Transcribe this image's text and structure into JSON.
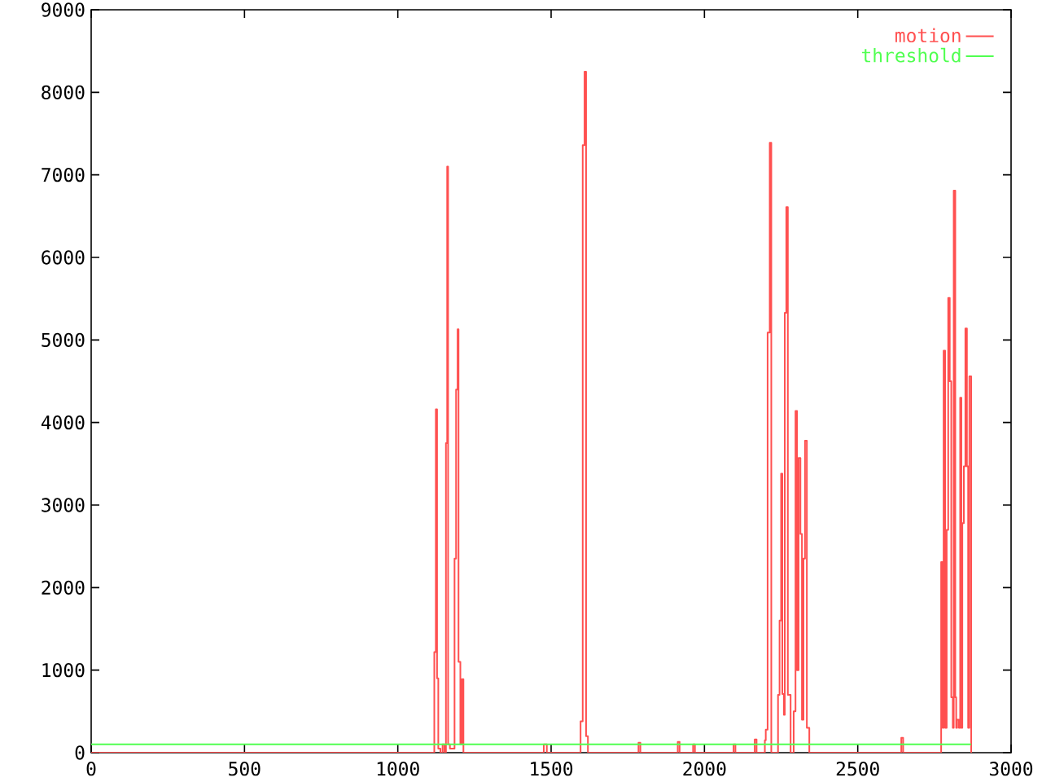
{
  "chart_data": {
    "type": "step",
    "series": [
      {
        "name": "motion",
        "color": "#ff5050",
        "x": [
          0,
          1119,
          1124,
          1128,
          1132,
          1139,
          1146,
          1152,
          1157,
          1161,
          1164,
          1170,
          1185,
          1190,
          1195,
          1198,
          1204,
          1209,
          1214,
          1476,
          1486,
          1596,
          1603,
          1609,
          1614,
          1620,
          1785,
          1791,
          1913,
          1919,
          1963,
          1969,
          2095,
          2101,
          2164,
          2170,
          2197,
          2200,
          2206,
          2213,
          2218,
          2240,
          2245,
          2250,
          2254,
          2259,
          2262,
          2267,
          2272,
          2281,
          2291,
          2297,
          2302,
          2307,
          2313,
          2318,
          2323,
          2328,
          2334,
          2342,
          2642,
          2648,
          2772,
          2777,
          2780,
          2785,
          2790,
          2795,
          2800,
          2805,
          2810,
          2813,
          2818,
          2821,
          2824,
          2830,
          2834,
          2838,
          2841,
          2846,
          2851,
          2856,
          2860,
          2864,
          2870
        ],
        "values": [
          0,
          1220,
          4160,
          900,
          50,
          0,
          100,
          0,
          3750,
          7100,
          100,
          50,
          2350,
          4400,
          5130,
          1100,
          100,
          890,
          0,
          100,
          0,
          380,
          7360,
          8250,
          200,
          0,
          120,
          0,
          130,
          0,
          100,
          0,
          100,
          0,
          160,
          0,
          150,
          280,
          5090,
          7390,
          0,
          700,
          1600,
          3380,
          710,
          460,
          5330,
          6610,
          700,
          0,
          500,
          4140,
          1000,
          3570,
          2650,
          400,
          2350,
          3780,
          300,
          0,
          180,
          0,
          2310,
          300,
          4870,
          300,
          2700,
          5510,
          4500,
          670,
          300,
          6810,
          670,
          300,
          400,
          300,
          4300,
          300,
          2780,
          3470,
          5140,
          3470,
          300,
          4560,
          0
        ]
      },
      {
        "name": "threshold",
        "color": "#50ff50",
        "x": [
          0,
          2870
        ],
        "values": [
          100,
          100
        ]
      }
    ],
    "xlim": [
      0,
      3000
    ],
    "ylim": [
      0,
      9000
    ],
    "xticks": [
      0,
      500,
      1000,
      1500,
      2000,
      2500,
      3000
    ],
    "yticks": [
      0,
      1000,
      2000,
      3000,
      4000,
      5000,
      6000,
      7000,
      8000,
      9000
    ],
    "legend": "top right",
    "grid": false,
    "marker": "none",
    "line_style": "solid"
  }
}
